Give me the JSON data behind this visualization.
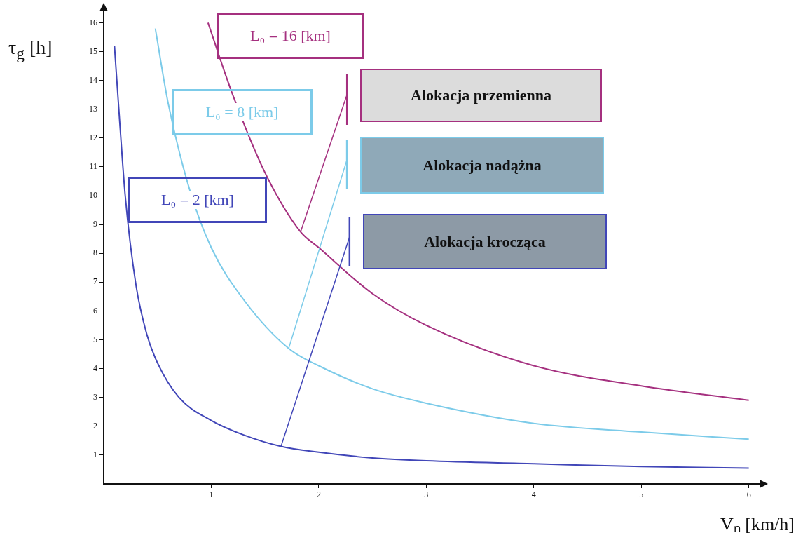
{
  "chart_data": {
    "type": "line",
    "xlabel": "Vₙ [km/h]",
    "ylabel": "τ$_{g}$ [h]",
    "xlim": [
      0,
      6.1
    ],
    "ylim": [
      0,
      16.4
    ],
    "xticks": [
      1,
      2,
      3,
      4,
      5,
      6
    ],
    "yticks": [
      1,
      2,
      3,
      4,
      5,
      6,
      7,
      8,
      9,
      10,
      11,
      12,
      13,
      14,
      15,
      16
    ],
    "grid": false,
    "legend": false,
    "marker": "none",
    "line_style": "solid",
    "series": [
      {
        "name": "L₀ = 2 [km]",
        "color": "#4146b8",
        "x": [
          0.1,
          0.15,
          0.2,
          0.3,
          0.4,
          0.5,
          0.7,
          1,
          1.3,
          1.65,
          2,
          2.5,
          3,
          4,
          5,
          6
        ],
        "values": [
          15.2,
          12.5,
          10.0,
          6.9,
          5.2,
          4.2,
          3.0,
          2.2,
          1.7,
          1.3,
          1.1,
          0.9,
          0.8,
          0.7,
          0.6,
          0.55
        ]
      },
      {
        "name": "L₀ = 8 [km]",
        "color": "#7ccbe9",
        "x": [
          0.48,
          0.6,
          0.8,
          1,
          1.3,
          1.72,
          2,
          2.5,
          3,
          4,
          5,
          6
        ],
        "values": [
          15.8,
          13.2,
          10.2,
          8.2,
          6.4,
          4.7,
          4.1,
          3.3,
          2.8,
          2.1,
          1.8,
          1.55
        ]
      },
      {
        "name": "L₀ = 16 [km]",
        "color": "#a5307f",
        "x": [
          0.97,
          1.2,
          1.5,
          1.83,
          2,
          2.5,
          3,
          4,
          5,
          6
        ],
        "values": [
          16,
          13.5,
          10.8,
          8.75,
          8.2,
          6.6,
          5.5,
          4.1,
          3.4,
          2.9
        ]
      }
    ],
    "annotations": [
      "Alokacja przemienna",
      "Alokacja nadążna",
      "Alokacja krocząca"
    ]
  }
}
